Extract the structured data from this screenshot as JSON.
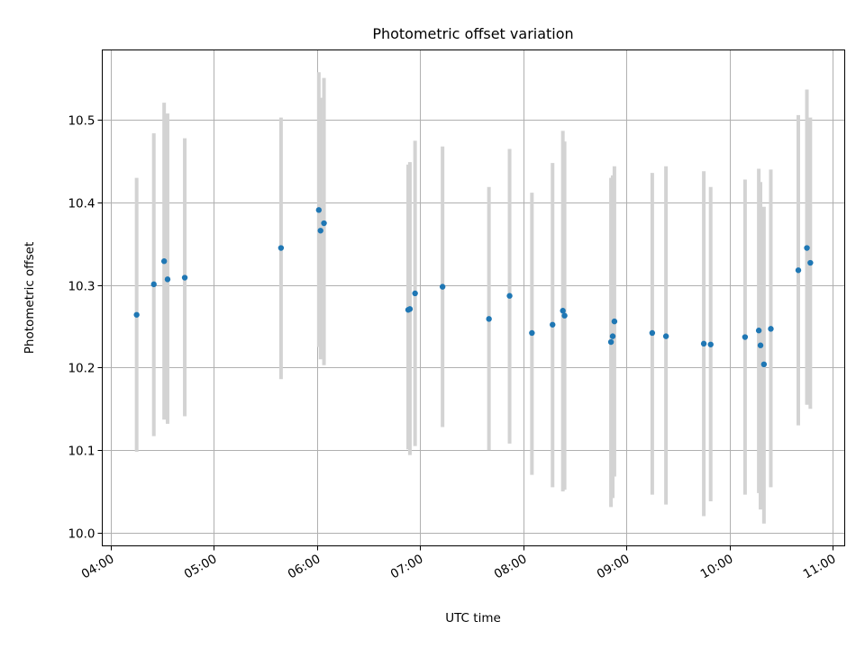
{
  "chart_data": {
    "type": "scatter",
    "title": "Photometric offset variation",
    "xlabel": "UTC time",
    "ylabel": "Photometric offset",
    "xlim": [
      "03:55",
      "11:07"
    ],
    "ylim": [
      9.984,
      10.585
    ],
    "grid": true,
    "x_ticks": [
      "04:00",
      "05:00",
      "06:00",
      "07:00",
      "08:00",
      "09:00",
      "10:00",
      "11:00"
    ],
    "y_ticks": [
      10.0,
      10.1,
      10.2,
      10.3,
      10.4,
      10.5
    ],
    "y_tick_labels": [
      "10.0",
      "10.1",
      "10.2",
      "10.3",
      "10.4",
      "10.5"
    ],
    "colors": {
      "points": "#1f77b4",
      "error_bars": "#d3d3d3",
      "grid": "#b0b0b0"
    },
    "series": [
      {
        "x": [
          "04:15",
          "04:25",
          "04:31",
          "04:33",
          "04:43",
          "05:39",
          "06:01",
          "06:02",
          "06:04",
          "06:53",
          "06:54",
          "06:57",
          "07:13",
          "07:40",
          "07:52",
          "08:05",
          "08:17",
          "08:23",
          "08:24",
          "08:51",
          "08:52",
          "08:53",
          "09:15",
          "09:23",
          "09:45",
          "09:49",
          "10:09",
          "10:17",
          "10:18",
          "10:20",
          "10:24",
          "10:40",
          "10:45",
          "10:47"
        ],
        "y": [
          10.264,
          10.301,
          10.329,
          10.307,
          10.309,
          10.345,
          10.391,
          10.366,
          10.375,
          10.27,
          10.271,
          10.29,
          10.298,
          10.259,
          10.287,
          10.242,
          10.252,
          10.269,
          10.263,
          10.231,
          10.238,
          10.256,
          10.242,
          10.238,
          10.229,
          10.228,
          10.237,
          10.245,
          10.227,
          10.204,
          10.247,
          10.318,
          10.345,
          10.327
        ],
        "y_low": [
          10.098,
          10.117,
          10.137,
          10.132,
          10.141,
          10.186,
          10.225,
          10.21,
          10.203,
          10.101,
          10.094,
          10.105,
          10.128,
          10.1,
          10.108,
          10.07,
          10.055,
          10.05,
          10.052,
          10.031,
          10.042,
          10.068,
          10.046,
          10.034,
          10.02,
          10.038,
          10.046,
          10.048,
          10.028,
          10.011,
          10.055,
          10.13,
          10.155,
          10.15
        ],
        "y_high": [
          10.43,
          10.484,
          10.521,
          10.508,
          10.478,
          10.503,
          10.558,
          10.527,
          10.551,
          10.446,
          10.449,
          10.475,
          10.468,
          10.419,
          10.465,
          10.412,
          10.448,
          10.487,
          10.474,
          10.43,
          10.433,
          10.444,
          10.436,
          10.444,
          10.438,
          10.419,
          10.428,
          10.441,
          10.425,
          10.395,
          10.44,
          10.506,
          10.537,
          10.503
        ]
      }
    ]
  }
}
